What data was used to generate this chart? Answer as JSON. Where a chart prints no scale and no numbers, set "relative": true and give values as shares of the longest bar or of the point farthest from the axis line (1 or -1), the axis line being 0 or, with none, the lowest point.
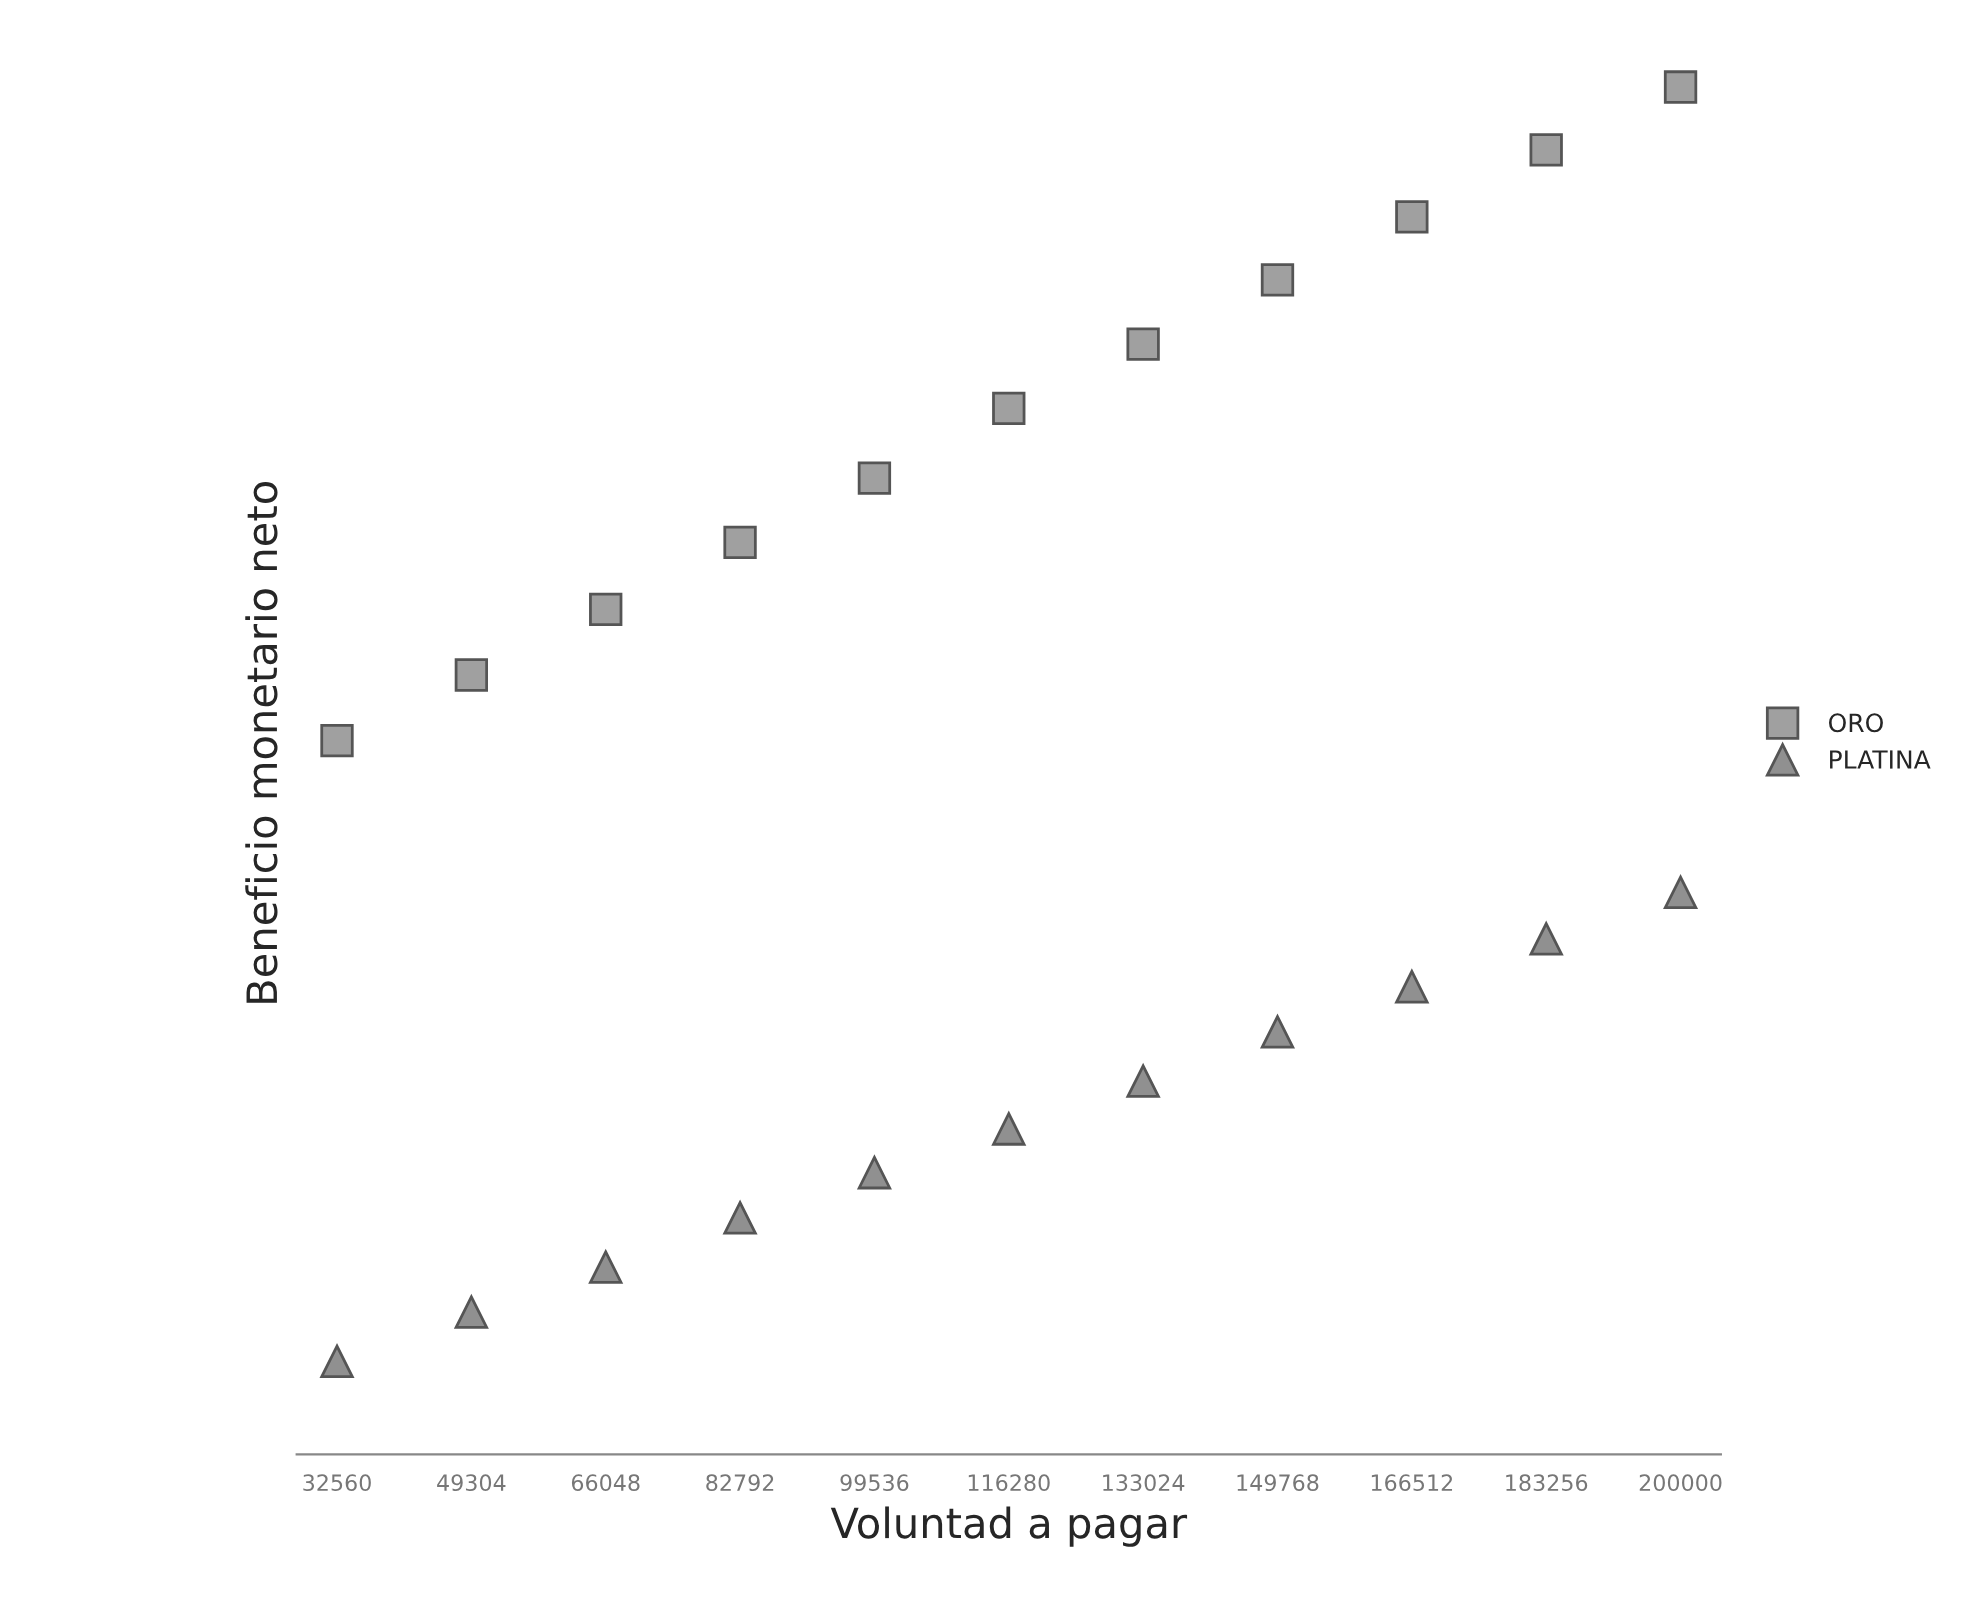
{
  "chart_data": {
    "type": "scatter",
    "xlabel": "Voluntad a pagar",
    "ylabel": "Beneficio monetario neto",
    "relative": true,
    "categories": [
      "32560",
      "49304",
      "66048",
      "82792",
      "99536",
      "116280",
      "133024",
      "149768",
      "166512",
      "183256",
      "200000"
    ],
    "series": [
      {
        "name": "ORO",
        "color": "#a0a0a0",
        "marker": "square",
        "values": [
          0.522,
          0.57,
          0.618,
          0.667,
          0.714,
          0.765,
          0.812,
          0.859,
          0.905,
          0.954,
          1
        ]
      },
      {
        "name": "PLATINA",
        "color": "#909090",
        "marker": "triangle",
        "values": [
          0.068,
          0.104,
          0.137,
          0.173,
          0.206,
          0.238,
          0.273,
          0.309,
          0.342,
          0.377,
          0.411
        ]
      }
    ],
    "legend": "right",
    "grid": false
  }
}
